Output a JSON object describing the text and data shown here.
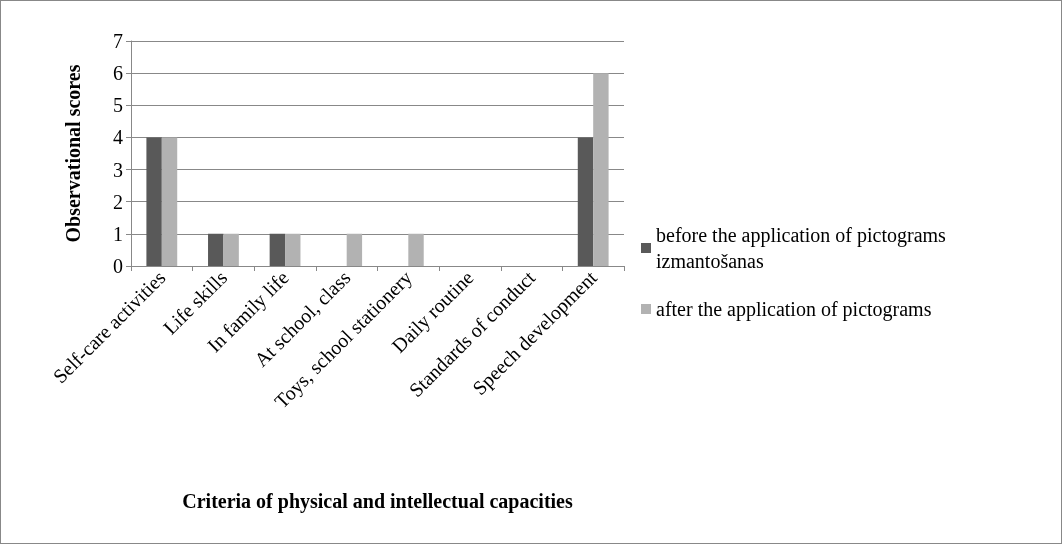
{
  "chart_data": {
    "type": "bar",
    "xlabel": "Criteria of physical and intellectual capacities",
    "ylabel": "Observational scores",
    "categories": [
      "Self-care activities",
      "Life skills",
      "In family life",
      "At school, class",
      "Toys, school stationery",
      "Daily routine",
      "Standards of conduct",
      "Speech development"
    ],
    "series": [
      {
        "name": "before the application of pictograms izmantošanas",
        "color": "#595959",
        "values": [
          4,
          1,
          1,
          0,
          0,
          0,
          0,
          4
        ]
      },
      {
        "name": "after the application of pictograms",
        "color": "#b2b2b2",
        "values": [
          4,
          1,
          1,
          1,
          1,
          0,
          0,
          6
        ]
      }
    ],
    "ylim": [
      0,
      7
    ],
    "yticks": [
      0,
      1,
      2,
      3,
      4,
      5,
      6,
      7
    ],
    "grid": "y",
    "legend": "right"
  }
}
